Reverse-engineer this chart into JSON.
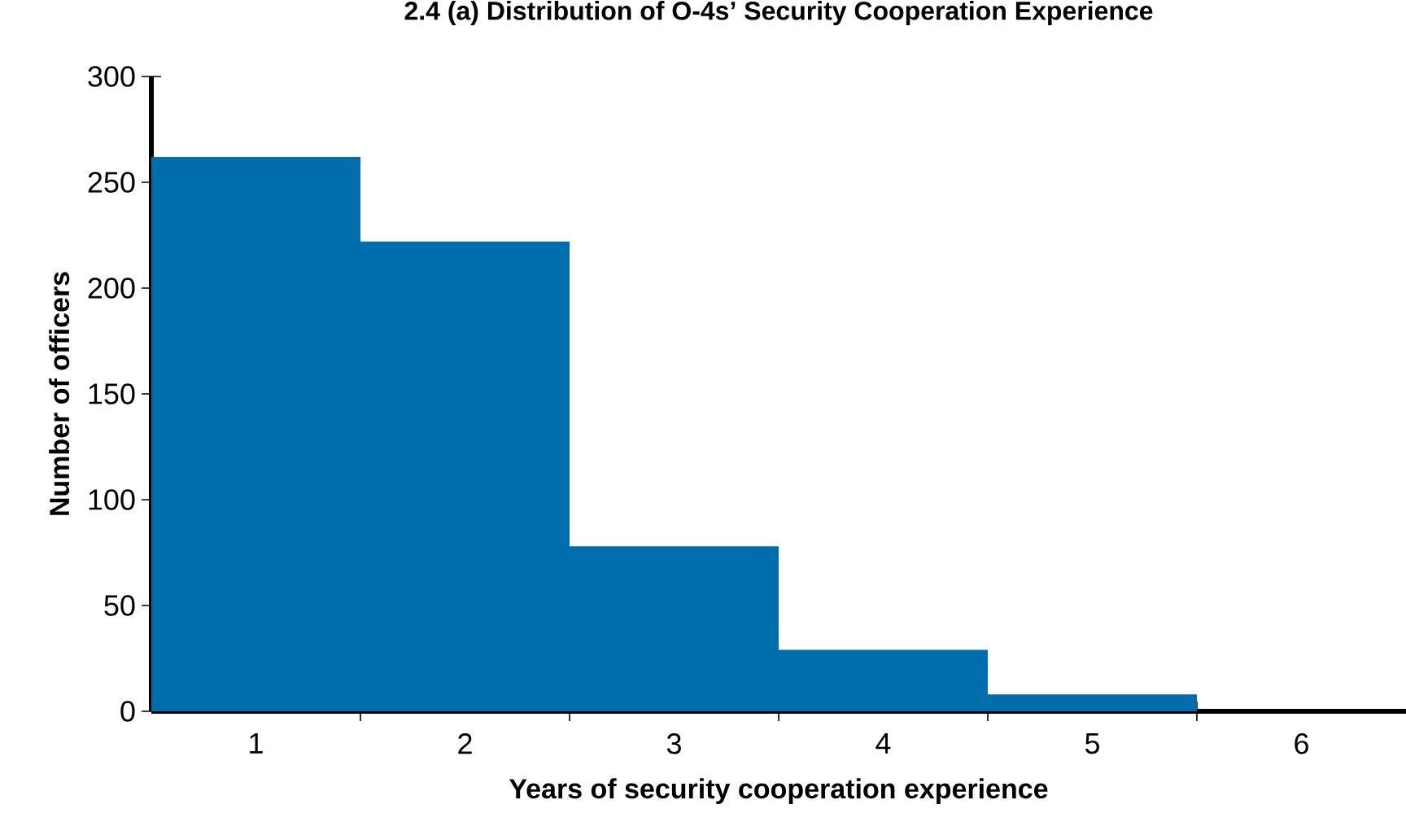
{
  "chart_data": {
    "type": "bar",
    "title": "2.4 (a) Distribution of O-4s’ Security Cooperation Experience",
    "xlabel": "Years of security cooperation experience",
    "ylabel": "Number of officers",
    "categories": [
      "1",
      "2",
      "3",
      "4",
      "5",
      "6"
    ],
    "values": [
      262,
      222,
      78,
      29,
      8,
      0
    ],
    "color": "#006ead",
    "ylim": [
      0,
      300
    ],
    "yticks": [
      0,
      50,
      100,
      150,
      200,
      250,
      300
    ],
    "grid": false
  }
}
